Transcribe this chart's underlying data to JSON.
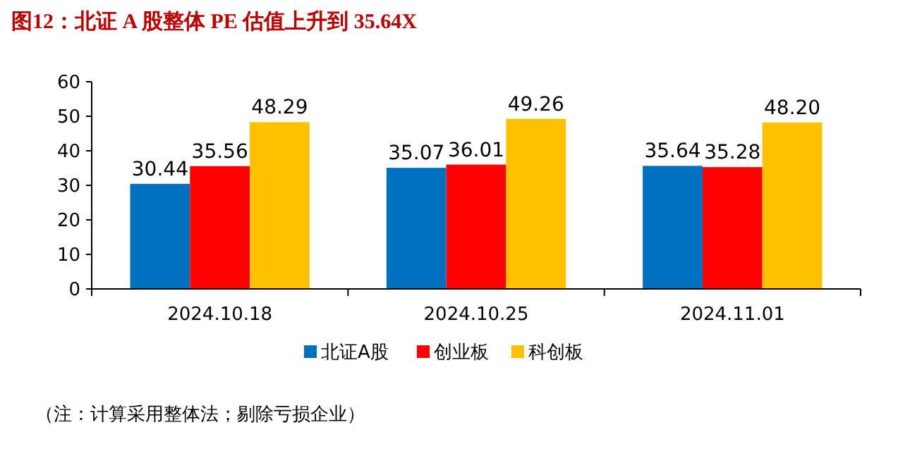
{
  "chart_data": {
    "type": "bar",
    "title": "图12：北证 A 股整体 PE 估值上升到 35.64X",
    "categories": [
      "2024.10.18",
      "2024.10.25",
      "2024.11.01"
    ],
    "series": [
      {
        "name": "北证A股",
        "color": "#0070c0",
        "values": [
          30.44,
          35.07,
          35.64
        ],
        "value_labels": [
          "30.44",
          "35.07",
          "35.64"
        ]
      },
      {
        "name": "创业板",
        "color": "#ff0000",
        "values": [
          35.56,
          36.01,
          35.28
        ],
        "value_labels": [
          "35.56",
          "36.01",
          "35.28"
        ]
      },
      {
        "name": "科创板",
        "color": "#ffc000",
        "values": [
          48.29,
          49.26,
          48.2
        ],
        "value_labels": [
          "48.29",
          "49.26",
          "48.20"
        ]
      }
    ],
    "ylim": [
      0,
      60
    ],
    "yticks": [
      0,
      10,
      20,
      30,
      40,
      50,
      60
    ],
    "grid": false,
    "legend": "bottom",
    "annotations": [
      "（注：计算采用整体法；剔除亏损企业）"
    ]
  }
}
